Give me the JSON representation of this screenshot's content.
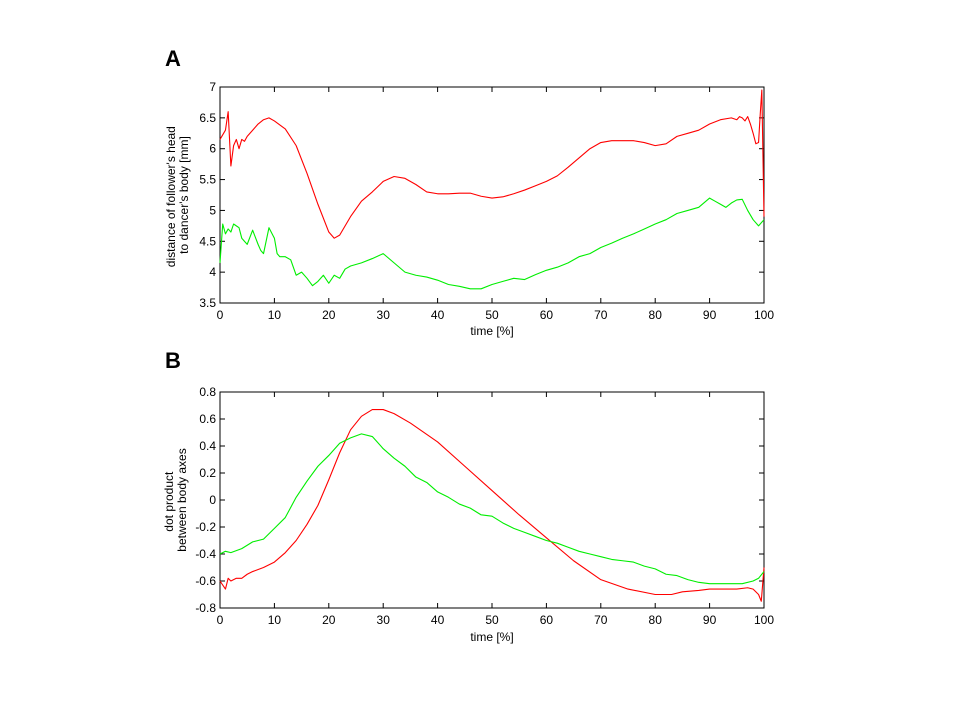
{
  "chart_data": [
    {
      "type": "line",
      "panel_label": "A",
      "xlabel": "time [%]",
      "ylabel_lines": [
        "distance of follower's head",
        "to dancer's body [mm]"
      ],
      "xlim": [
        0,
        100
      ],
      "ylim": [
        3.5,
        7
      ],
      "xticks": [
        0,
        10,
        20,
        30,
        40,
        50,
        60,
        70,
        80,
        90,
        100
      ],
      "yticks": [
        3.5,
        4,
        4.5,
        5,
        5.5,
        6,
        6.5,
        7
      ],
      "xtick_labels": [
        "0",
        "10",
        "20",
        "30",
        "40",
        "50",
        "60",
        "70",
        "80",
        "90",
        "100"
      ],
      "ytick_labels": [
        "3.5",
        "4",
        "4.5",
        "5",
        "5.5",
        "6",
        "6.5",
        "7"
      ],
      "grid": false,
      "legend": "none",
      "series": [
        {
          "color": "#ff0000",
          "x": [
            0,
            1,
            1.5,
            2,
            2.5,
            3,
            3.5,
            4,
            4.5,
            5,
            6,
            7,
            8,
            9,
            10,
            12,
            14,
            16,
            18,
            20,
            21,
            22,
            24,
            26,
            28,
            30,
            32,
            34,
            36,
            38,
            40,
            42,
            44,
            46,
            48,
            50,
            52,
            54,
            56,
            58,
            60,
            62,
            64,
            66,
            68,
            70,
            72,
            74,
            76,
            78,
            80,
            82,
            84,
            86,
            88,
            90,
            92,
            94,
            95,
            95.5,
            96,
            96.5,
            97,
            97.5,
            98,
            98.5,
            99,
            99.3,
            99.6,
            100
          ],
          "y": [
            6.15,
            6.3,
            6.6,
            5.72,
            6.05,
            6.15,
            6.0,
            6.15,
            6.12,
            6.2,
            6.3,
            6.4,
            6.47,
            6.5,
            6.45,
            6.32,
            6.05,
            5.6,
            5.1,
            4.65,
            4.55,
            4.6,
            4.9,
            5.15,
            5.3,
            5.47,
            5.55,
            5.52,
            5.42,
            5.3,
            5.27,
            5.27,
            5.28,
            5.28,
            5.23,
            5.2,
            5.22,
            5.27,
            5.33,
            5.4,
            5.47,
            5.56,
            5.7,
            5.85,
            6.0,
            6.1,
            6.13,
            6.13,
            6.13,
            6.1,
            6.05,
            6.08,
            6.2,
            6.25,
            6.3,
            6.4,
            6.47,
            6.5,
            6.47,
            6.52,
            6.5,
            6.45,
            6.52,
            6.4,
            6.25,
            6.08,
            6.1,
            6.55,
            6.95,
            4.9
          ]
        },
        {
          "color": "#00ee00",
          "x": [
            0,
            0.5,
            1,
            1.5,
            2,
            2.5,
            3,
            3.5,
            4,
            5,
            6,
            7,
            7.5,
            8,
            9,
            10,
            10.5,
            11,
            12,
            13,
            14,
            15,
            16,
            17,
            18,
            19,
            20,
            21,
            22,
            23,
            24,
            26,
            28,
            30,
            32,
            34,
            36,
            38,
            40,
            42,
            44,
            46,
            48,
            50,
            52,
            54,
            56,
            58,
            60,
            62,
            64,
            66,
            68,
            70,
            72,
            74,
            76,
            78,
            80,
            82,
            84,
            86,
            88,
            90,
            91,
            92,
            93,
            94,
            95,
            96,
            97,
            98,
            99,
            100
          ],
          "y": [
            4.15,
            4.78,
            4.62,
            4.7,
            4.65,
            4.78,
            4.75,
            4.72,
            4.55,
            4.45,
            4.68,
            4.45,
            4.35,
            4.3,
            4.72,
            4.55,
            4.3,
            4.25,
            4.25,
            4.2,
            3.95,
            4.0,
            3.9,
            3.78,
            3.85,
            3.95,
            3.82,
            3.95,
            3.9,
            4.05,
            4.1,
            4.15,
            4.22,
            4.3,
            4.15,
            4.0,
            3.95,
            3.92,
            3.87,
            3.8,
            3.77,
            3.73,
            3.73,
            3.8,
            3.85,
            3.9,
            3.88,
            3.96,
            4.03,
            4.08,
            4.15,
            4.25,
            4.3,
            4.4,
            4.47,
            4.55,
            4.62,
            4.7,
            4.78,
            4.85,
            4.95,
            5.0,
            5.05,
            5.2,
            5.15,
            5.1,
            5.05,
            5.12,
            5.17,
            5.18,
            5.0,
            4.85,
            4.75,
            4.85
          ]
        }
      ]
    },
    {
      "type": "line",
      "panel_label": "B",
      "xlabel": "time [%]",
      "ylabel_lines": [
        "dot product",
        "between body axes"
      ],
      "xlim": [
        0,
        100
      ],
      "ylim": [
        -0.8,
        0.8
      ],
      "xticks": [
        0,
        10,
        20,
        30,
        40,
        50,
        60,
        70,
        80,
        90,
        100
      ],
      "yticks": [
        -0.8,
        -0.6,
        -0.4,
        -0.2,
        0,
        0.2,
        0.4,
        0.6,
        0.8
      ],
      "xtick_labels": [
        "0",
        "10",
        "20",
        "30",
        "40",
        "50",
        "60",
        "70",
        "80",
        "90",
        "100"
      ],
      "ytick_labels": [
        "-0.8",
        "-0.6",
        "-0.4",
        "-0.2",
        "0",
        "0.2",
        "0.4",
        "0.6",
        "0.8"
      ],
      "grid": false,
      "legend": "none",
      "series": [
        {
          "color": "#ff0000",
          "x": [
            0,
            1,
            1.5,
            2,
            3,
            4,
            5,
            6,
            8,
            10,
            12,
            14,
            16,
            18,
            20,
            22,
            24,
            26,
            28,
            30,
            32,
            35,
            40,
            45,
            50,
            55,
            60,
            65,
            70,
            75,
            80,
            83,
            85,
            88,
            90,
            92,
            95,
            97,
            98,
            99,
            99.5,
            100
          ],
          "y": [
            -0.6,
            -0.66,
            -0.58,
            -0.6,
            -0.58,
            -0.58,
            -0.55,
            -0.53,
            -0.5,
            -0.46,
            -0.39,
            -0.3,
            -0.18,
            -0.04,
            0.15,
            0.35,
            0.52,
            0.62,
            0.67,
            0.67,
            0.64,
            0.57,
            0.43,
            0.25,
            0.07,
            -0.11,
            -0.28,
            -0.45,
            -0.59,
            -0.66,
            -0.7,
            -0.7,
            -0.68,
            -0.67,
            -0.66,
            -0.66,
            -0.66,
            -0.65,
            -0.66,
            -0.7,
            -0.75,
            -0.5
          ]
        },
        {
          "color": "#00ee00",
          "x": [
            0,
            1,
            2,
            4,
            6,
            8,
            10,
            12,
            14,
            16,
            18,
            20,
            22,
            24,
            26,
            28,
            30,
            32,
            34,
            36,
            38,
            40,
            42,
            44,
            46,
            48,
            50,
            52,
            54,
            56,
            58,
            60,
            62,
            64,
            66,
            68,
            70,
            72,
            74,
            76,
            78,
            80,
            82,
            84,
            86,
            88,
            90,
            92,
            94,
            96,
            98,
            99,
            100
          ],
          "y": [
            -0.4,
            -0.38,
            -0.39,
            -0.36,
            -0.31,
            -0.29,
            -0.21,
            -0.13,
            0.02,
            0.14,
            0.25,
            0.33,
            0.42,
            0.46,
            0.49,
            0.47,
            0.38,
            0.31,
            0.25,
            0.17,
            0.13,
            0.06,
            0.02,
            -0.03,
            -0.06,
            -0.11,
            -0.12,
            -0.17,
            -0.21,
            -0.24,
            -0.27,
            -0.3,
            -0.32,
            -0.35,
            -0.38,
            -0.4,
            -0.42,
            -0.44,
            -0.45,
            -0.46,
            -0.49,
            -0.51,
            -0.55,
            -0.56,
            -0.59,
            -0.61,
            -0.62,
            -0.62,
            -0.62,
            -0.62,
            -0.6,
            -0.58,
            -0.53
          ]
        }
      ]
    }
  ]
}
